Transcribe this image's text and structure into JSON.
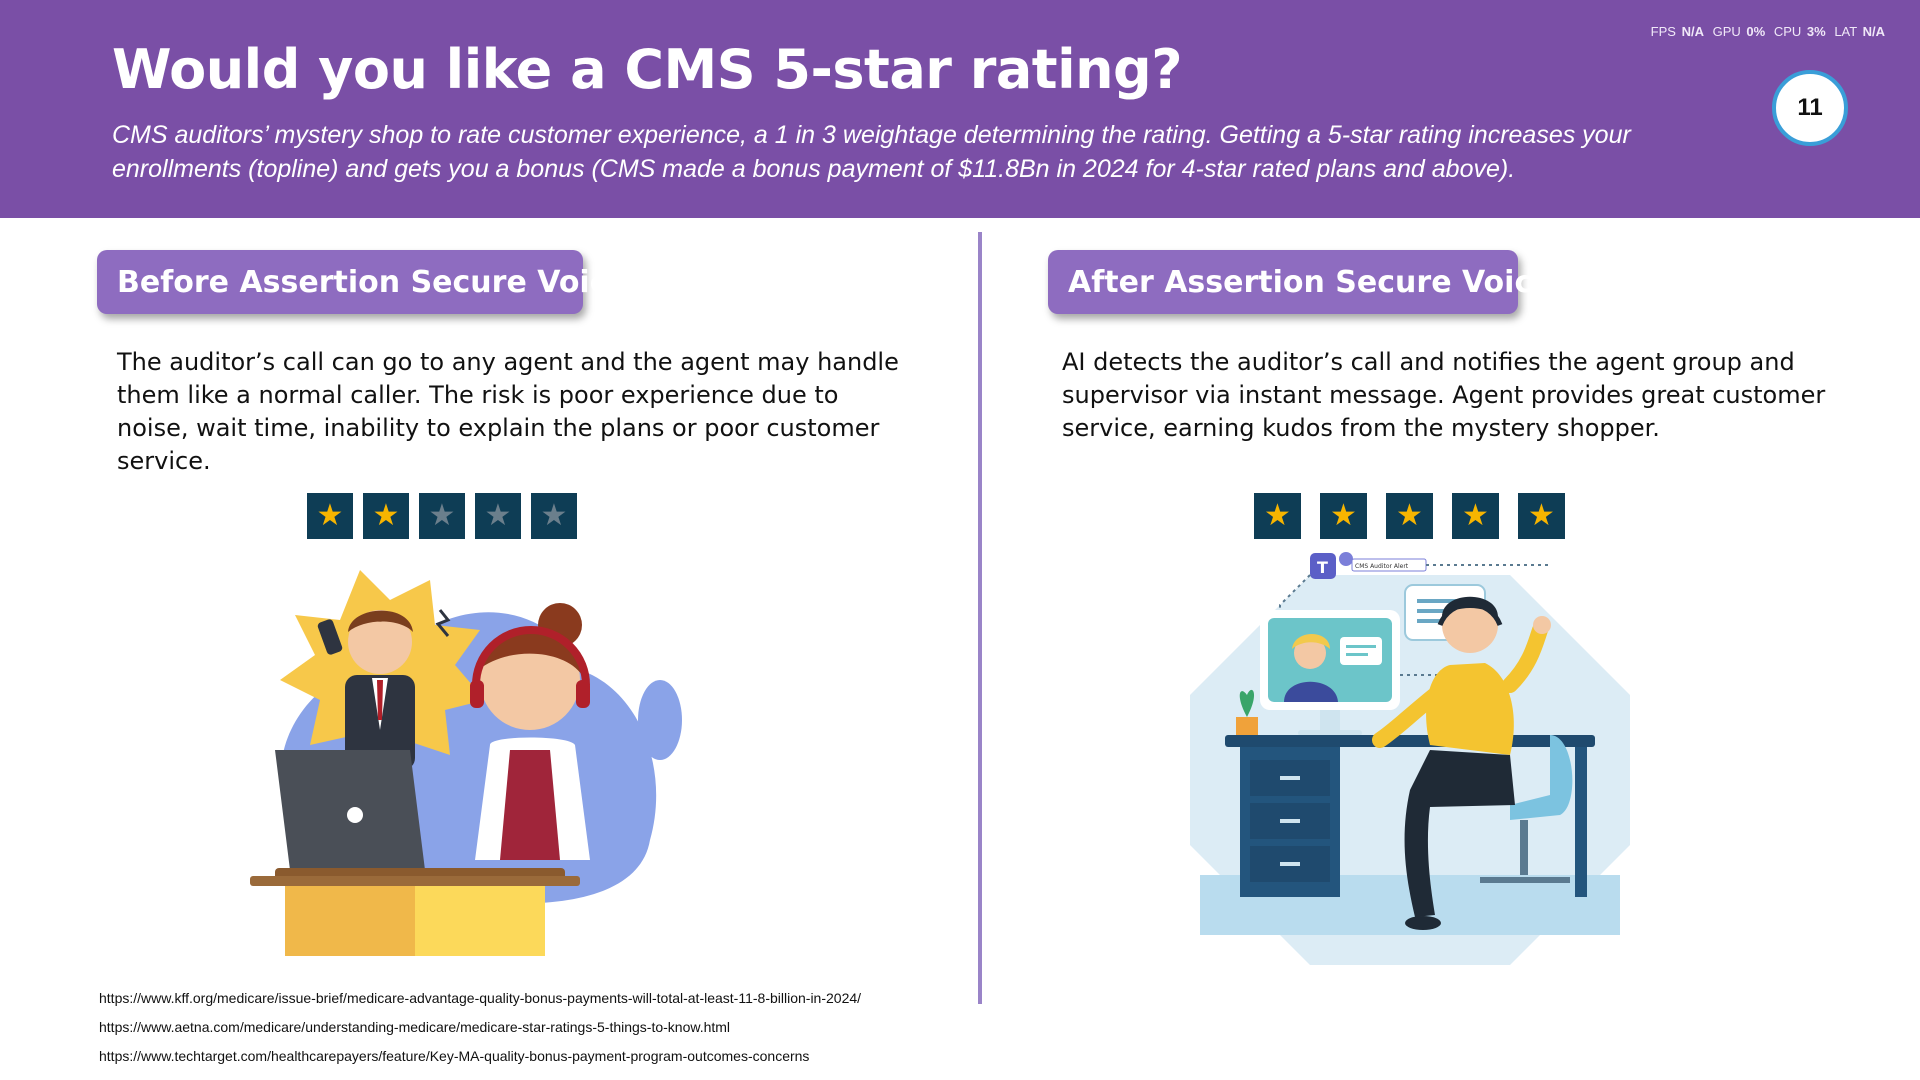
{
  "header": {
    "title": "Would you like a CMS 5-star rating?",
    "subtitle": "CMS auditors’ mystery shop to rate customer experience, a 1 in 3 weightage determining the rating.  Getting a 5-star rating increases your enrollments (topline) and gets you a bonus (CMS made a bonus payment of $11.8Bn in 2024 for 4-star rated plans and above).",
    "page_number": "11",
    "color": "#7a4fa6"
  },
  "stats": {
    "fps_label": "FPS",
    "fps_value": "N/A",
    "gpu_label": "GPU",
    "gpu_value": "0%",
    "cpu_label": "CPU",
    "cpu_value": "3%",
    "lat_label": "LAT",
    "lat_value": "N/A"
  },
  "before": {
    "label": "Before Assertion Secure Voice",
    "description": "The auditor’s call can go to any agent and the agent may handle them like a normal caller.  The risk is poor experience due to noise, wait time, inability to explain the plans or poor customer service.",
    "rating": 2,
    "rating_max": 5,
    "illustration": "stressed-call-center-agent-illustration"
  },
  "after": {
    "label": "After Assertion Secure Voice",
    "description": "AI detects the auditor’s call and notifies the agent group and supervisor via instant message.  Agent provides great customer service, earning kudos from the mystery shopper.",
    "rating": 5,
    "rating_max": 5,
    "illustration": "happy-agent-at-desk-illustration",
    "alert_text": "CMS Auditor Alert"
  },
  "references": [
    "https://www.kff.org/medicare/issue-brief/medicare-advantage-quality-bonus-payments-will-total-at-least-11-8-billion-in-2024/",
    "https://www.aetna.com/medicare/understanding-medicare/medicare-star-ratings-5-things-to-know.html",
    "https://www.techtarget.com/healthcarepayers/feature/Key-MA-quality-bonus-payment-program-outcomes-concerns"
  ],
  "colors": {
    "accent": "#8e6cc0",
    "star_box": "#0e3d55",
    "star_on": "#f7b500",
    "star_off": "#6b7f8c",
    "badge_border": "#3a9ed8"
  }
}
